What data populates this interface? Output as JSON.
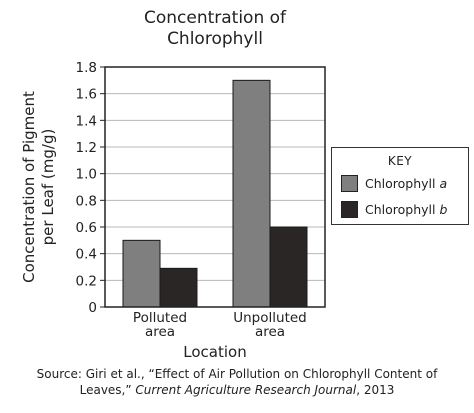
{
  "chart_data": {
    "type": "bar",
    "title": [
      "Concentration of",
      "Chlorophyll"
    ],
    "ylabel": [
      "Concentration of Pigment",
      "per Leaf (mg/g)"
    ],
    "xlabel": "Location",
    "categories": [
      [
        "Polluted",
        "area"
      ],
      [
        "Unpolluted",
        "area"
      ]
    ],
    "series": [
      {
        "name": "Chlorophyll a",
        "name_base": "Chlorophyll ",
        "name_var": "a",
        "color": "#7f7f7f",
        "values": [
          0.5,
          1.7
        ]
      },
      {
        "name": "Chlorophyll b",
        "name_base": "Chlorophyll ",
        "name_var": "b",
        "color": "#2a2626",
        "values": [
          0.29,
          0.6
        ]
      }
    ],
    "ylim": [
      0,
      1.8
    ],
    "yticks": [
      0,
      0.2,
      0.4,
      0.6,
      0.8,
      1.0,
      1.2,
      1.4,
      1.6,
      1.8
    ],
    "ytick_labels": [
      "0",
      "0.2",
      "0.4",
      "0.6",
      "0.8",
      "1.0",
      "1.2",
      "1.4",
      "1.6",
      "1.8"
    ],
    "grid": true,
    "legend": {
      "title": "KEY",
      "placement": "right"
    }
  },
  "source": {
    "line1": "Source: Giri et al., “Effect of Air Pollution on Chlorophyll Content of",
    "line2_a": "Leaves,” ",
    "line2_italic": "Current Agriculture Research Journal",
    "line2_b": ", 2013"
  }
}
